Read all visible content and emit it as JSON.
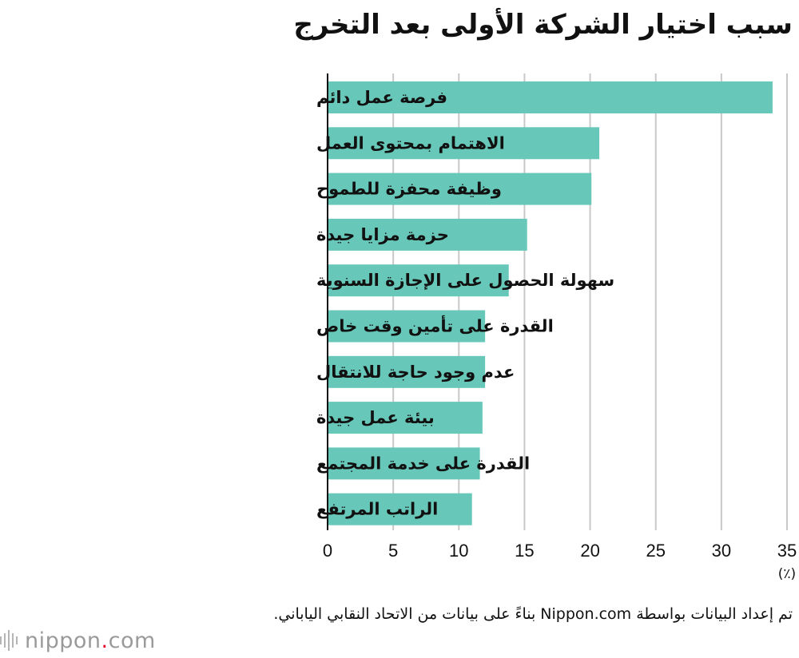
{
  "chart_data": {
    "type": "bar",
    "orientation": "horizontal",
    "title": "سبب اختيار الشركة الأولى بعد التخرج",
    "unit": "(٪)",
    "categories": [
      "فرصة عمل دائم",
      "الاهتمام بمحتوى العمل",
      "وظيفة محفزة للطموح",
      "حزمة مزايا جيدة",
      "سهولة الحصول على الإجازة السنوية",
      "القدرة على تأمين وقت خاص",
      "عدم وجود حاجة للانتقال",
      "بيئة عمل جيدة",
      "القدرة على خدمة المجتمع",
      "الراتب المرتفع"
    ],
    "values": [
      33.9,
      20.7,
      20.1,
      15.2,
      13.8,
      12.0,
      12.0,
      11.8,
      11.6,
      11.0
    ],
    "xlim": [
      0,
      35
    ],
    "xticks": [
      0,
      5,
      10,
      15,
      20,
      25,
      30,
      35
    ],
    "grid": true,
    "bar_color": "#67c7b8"
  },
  "source_note": "تم إعداد البيانات بواسطة Nippon.com بناءً على بيانات من الاتحاد النقابي الياباني.",
  "logo": {
    "name": "nippon",
    "dot": ".",
    "suffix": "com"
  }
}
